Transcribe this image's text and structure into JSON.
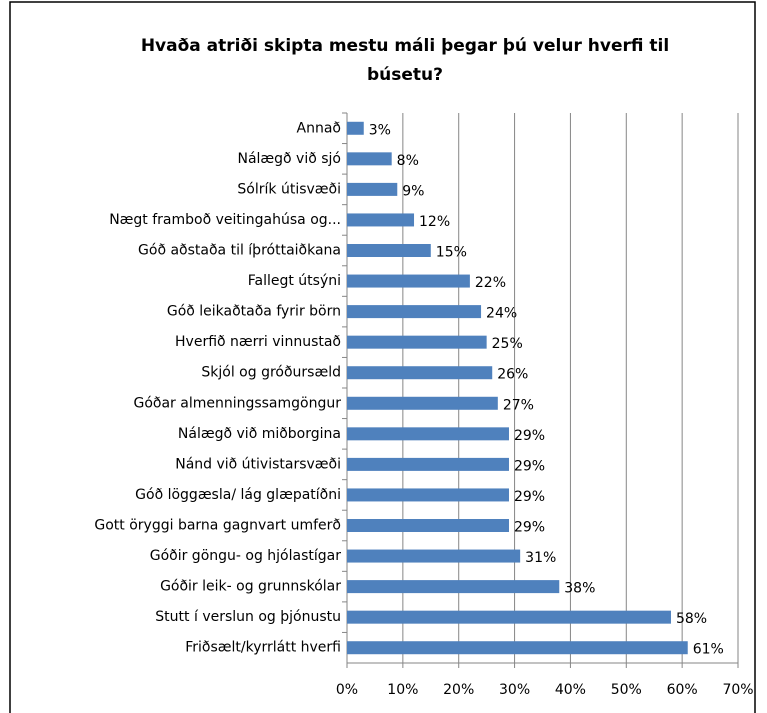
{
  "chart_data": {
    "type": "barh",
    "title": "Hvaða atriði skipta mestu máli þegar þú velur hverfi til búsetu?",
    "categories": [
      "Annað",
      "Nálægð við sjó",
      "Sólrík útisvæði",
      "Nægt framboð veitingahúsa og...",
      "Góð aðstaða til íþróttaiðkana",
      "Fallegt útsýni",
      "Góð leikaðtaða fyrir börn",
      "Hverfið nærri vinnustað",
      "Skjól og gróðursæld",
      "Góðar almenningssamgöngur",
      "Nálægð við miðborgina",
      "Nánd við útivistarsvæði",
      "Góð löggæsla/ lág glæpatíðni",
      "Gott öryggi barna gagnvart umferð",
      "Góðir göngu- og hjólastígar",
      "Góðir leik- og grunnskólar",
      "Stutt í verslun og þjónustu",
      "Friðsælt/kyrrlátt hverfi"
    ],
    "values": [
      3,
      8,
      9,
      12,
      15,
      22,
      24,
      25,
      26,
      27,
      29,
      29,
      29,
      29,
      31,
      38,
      58,
      61
    ],
    "value_labels": [
      "3%",
      "8%",
      "9%",
      "12%",
      "15%",
      "22%",
      "24%",
      "25%",
      "26%",
      "27%",
      "29%",
      "29%",
      "29%",
      "29%",
      "31%",
      "38%",
      "58%",
      "61%"
    ],
    "color": "#4f81bd",
    "xlim": [
      0,
      70
    ],
    "xticks": [
      {
        "value": 0,
        "label": "0%"
      },
      {
        "value": 10,
        "label": "10%"
      },
      {
        "value": 20,
        "label": "20%"
      },
      {
        "value": 30,
        "label": "30%"
      },
      {
        "value": 40,
        "label": "40%"
      },
      {
        "value": 50,
        "label": "50%"
      },
      {
        "value": 60,
        "label": "60%"
      },
      {
        "value": 70,
        "label": "70%"
      }
    ],
    "grid": true
  }
}
